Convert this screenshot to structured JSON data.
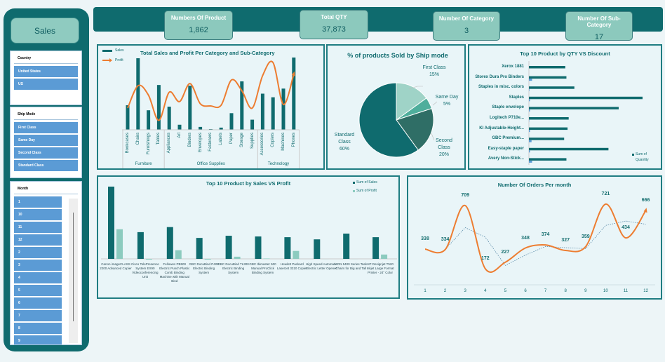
{
  "sidebar": {
    "title": "Sales",
    "country": {
      "header": "Country",
      "items": [
        "United States",
        "US"
      ]
    },
    "ship_mode": {
      "header": "Ship Mode",
      "items": [
        "First Class",
        "Same Day",
        "Second Class",
        "Standard Class"
      ]
    },
    "month": {
      "header": "Month",
      "items": [
        "1",
        "10",
        "11",
        "12",
        "2",
        "3",
        "4",
        "5",
        "6",
        "7",
        "8",
        "9"
      ]
    }
  },
  "kpis": [
    {
      "label": "Numbers Of Product",
      "value": "1,862"
    },
    {
      "label": "Total QTY",
      "value": "37,873"
    },
    {
      "label": "Number Of Category",
      "value": "3"
    },
    {
      "label": "Number Of Sub-Category",
      "value": "17"
    }
  ],
  "colors": {
    "teal": "#0f6b6e",
    "light_teal": "#8cc9bd",
    "orange": "#ed7d31",
    "slicer_blue": "#5b9bd5"
  },
  "chart_data": [
    {
      "type": "bar+line",
      "title": "Total Sales and Profit Per Category and Sub-Category",
      "legend": [
        "Sales",
        "Profit"
      ],
      "legend_position": "top-left",
      "groups": [
        {
          "name": "Furniture",
          "categories": [
            "Bookcases",
            "Chairs",
            "Furnishings",
            "Tables"
          ]
        },
        {
          "name": "Office Supplies",
          "categories": [
            "Appliances",
            "Art",
            "Binders",
            "Envelopes",
            "Fasteners",
            "Labels",
            "Paper",
            "Storage",
            "Supplies"
          ]
        },
        {
          "name": "Technology",
          "categories": [
            "Accessories",
            "Copiers",
            "Machines",
            "Phones"
          ]
        }
      ],
      "series": [
        {
          "name": "Sales",
          "values": [
            34,
            99,
            27,
            62,
            32,
            7,
            61,
            4,
            1,
            3,
            23,
            67,
            14,
            50,
            45,
            57,
            100
          ]
        },
        {
          "name": "Profit",
          "values": [
            30,
            61,
            48,
            13,
            52,
            39,
            64,
            36,
            33,
            34,
            69,
            54,
            30,
            75,
            93,
            35,
            77
          ]
        }
      ]
    },
    {
      "type": "pie",
      "title": "% of products Sold by Ship mode",
      "slices": [
        {
          "label": "First Class",
          "value": 15
        },
        {
          "label": "Same Day",
          "value": 5
        },
        {
          "label": "Second Class",
          "value": 20
        },
        {
          "label": "Standard Class",
          "value": 60
        }
      ]
    },
    {
      "type": "bar",
      "orientation": "horizontal",
      "title": "Top 10 Product by QTY VS Discount",
      "legend": [
        "Sum of Quantity"
      ],
      "legend_position": "bottom-right",
      "categories": [
        "Xerox 1881",
        "Storex Dura Pro Binders",
        "Staples in misc. colors",
        "Staples",
        "Staple envelope",
        "Logitech P710e...",
        "KI Adjustable-Height...",
        "GBC Premium...",
        "Easy-staple paper",
        "Avery Non-Stick..."
      ],
      "series": [
        {
          "name": "Sum of Quantity",
          "values": [
            32,
            33,
            40,
            100,
            79,
            35,
            34,
            31,
            70,
            33
          ]
        },
        {
          "values": [
            0,
            3,
            0.5,
            1,
            1,
            0.3,
            1,
            2.5,
            1,
            3
          ]
        }
      ]
    },
    {
      "type": "bar",
      "title": "Top 10 Product by Sales VS Profit",
      "legend": [
        "Sum of Sales",
        "Sum of Profit"
      ],
      "legend_position": "top-right",
      "categories": [
        "Canon imageCLASS 2200 Advanced Copier",
        "Cisco TelePresence System EX90 Videoconferencing Unit",
        "Fellowes PB500 Electric Punch Plastic Comb Binding Machine with Manual Bind",
        "GBC DocuBind P400 Electric Binding System",
        "GBC DocuBind TL300 Electric Binding System",
        "GBC Ibimaster 500 Manual ProClick Binding System",
        "Hewlett Packard LaserJet 3310 Copier",
        "High Speed Automatic Electric Letter Opener",
        "HON 5400 Series Task Chairs for Big and Tall",
        "HP Designjet T520 Inkjet Large Format Printer - 24\" Color"
      ],
      "series": [
        {
          "name": "Sum of Sales",
          "values": [
            100,
            37,
            44,
            29,
            32,
            31,
            30,
            27,
            35,
            30
          ]
        },
        {
          "name": "Sum of Profit",
          "values": [
            41,
            -1,
            12,
            -1,
            3,
            0.5,
            11,
            0,
            0,
            6
          ]
        }
      ]
    },
    {
      "type": "line",
      "title": "Number Of Orders Per month",
      "x": [
        1,
        2,
        3,
        4,
        5,
        6,
        7,
        8,
        9,
        10,
        11,
        12
      ],
      "values": [
        338,
        334,
        709,
        172,
        227,
        348,
        374,
        327,
        359,
        721,
        434,
        666
      ],
      "trendline": "2-period moving average"
    }
  ]
}
